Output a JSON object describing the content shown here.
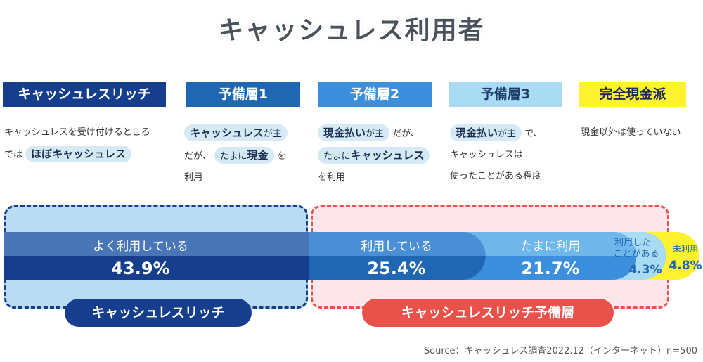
{
  "title": "キャッシュレス利用者",
  "categories": [
    {
      "label": "キャッシュレスリッチ"
    },
    {
      "label": "予備層1"
    },
    {
      "label": "予備層2"
    },
    {
      "label": "予備層3"
    },
    {
      "label": "完全現金派"
    }
  ],
  "descriptions": {
    "d1": {
      "line1": "キャッシュレスを受け付けるところ",
      "line2_pre": "では",
      "line2_hl": "ほぼキャッシュレス"
    },
    "d2": {
      "hl1": "キャッシュレス",
      "t1": "が主",
      "t2": "だが、",
      "hl2a": "たまに",
      "hl2b": "現金",
      "t3": "を",
      "t4": "利用"
    },
    "d3": {
      "hl1": "現金払い",
      "t1": "が主",
      "t2": "だが、",
      "t3": "たまに",
      "hl2": "キャッシュレス",
      "t4": "を利用"
    },
    "d4": {
      "hl1": "現金払い",
      "t1": "が主",
      "t2": "で、",
      "t3": "キャッシュレスは",
      "t4": "使ったことがある程度"
    },
    "d5": {
      "t1": "現金以外は使っていない"
    }
  },
  "chart_data": {
    "type": "bar",
    "orientation": "horizontal-stacked",
    "series": [
      {
        "name": "よく利用している",
        "value": 43.9,
        "label": "43.9%"
      },
      {
        "name": "利用している",
        "value": 25.4,
        "label": "25.4%"
      },
      {
        "name": "たまに利用",
        "value": 21.7,
        "label": "21.7%"
      },
      {
        "name_line1": "利用した",
        "name_line2": "ことがある",
        "value": 4.3,
        "label": "4.3%"
      },
      {
        "name": "未利用",
        "value": 4.8,
        "label": "4.8%"
      }
    ],
    "unit": "%"
  },
  "groups": {
    "left": "キャッシュレスリッチ",
    "right": "キャッシュレスリッチ予備層"
  },
  "source": "Source：キャッシュレス調査2022.12（インターネット）n=500",
  "colors": {
    "seg1_top": "#4a76b8",
    "seg1_bottom": "#173e8c",
    "seg2_top": "#4a8fd6",
    "seg2_bottom": "#1f66b3",
    "seg3_top": "#6fb7ea",
    "seg3_bottom": "#3c8fdc",
    "seg4": "#a9dcf3",
    "seg5": "#fff22e"
  }
}
